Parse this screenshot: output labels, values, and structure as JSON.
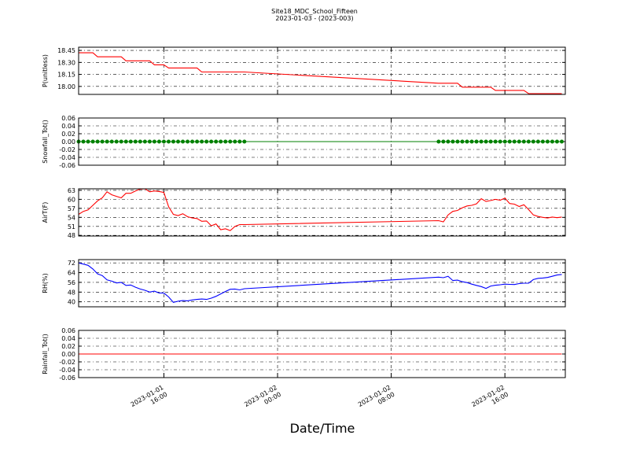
{
  "chart_data": {
    "type": "line",
    "title": "Site18_MDC_School_Fifteen",
    "subtitle": "2023-01-03 - (2023-003)",
    "xlabel": "Date/Time",
    "grid": true,
    "x": [
      "2023-01-01 10:00",
      "2023-01-01 10:20",
      "2023-01-01 10:40",
      "2023-01-01 11:00",
      "2023-01-01 11:20",
      "2023-01-01 11:40",
      "2023-01-01 12:00",
      "2023-01-01 12:20",
      "2023-01-01 12:40",
      "2023-01-01 13:00",
      "2023-01-01 13:20",
      "2023-01-01 13:40",
      "2023-01-01 14:00",
      "2023-01-01 14:20",
      "2023-01-01 14:40",
      "2023-01-01 15:00",
      "2023-01-01 15:20",
      "2023-01-01 15:40",
      "2023-01-01 16:00",
      "2023-01-01 16:20",
      "2023-01-01 16:40",
      "2023-01-01 17:00",
      "2023-01-01 17:20",
      "2023-01-01 17:40",
      "2023-01-01 18:00",
      "2023-01-01 18:20",
      "2023-01-01 18:40",
      "2023-01-01 19:00",
      "2023-01-01 19:20",
      "2023-01-01 19:40",
      "2023-01-01 20:00",
      "2023-01-01 20:20",
      "2023-01-01 20:40",
      "2023-01-01 21:00",
      "2023-01-01 21:20",
      "2023-01-01 21:40",
      "2023-01-02 11:20",
      "2023-01-02 11:40",
      "2023-01-02 12:00",
      "2023-01-02 12:20",
      "2023-01-02 12:40",
      "2023-01-02 13:00",
      "2023-01-02 13:20",
      "2023-01-02 13:40",
      "2023-01-02 14:00",
      "2023-01-02 14:20",
      "2023-01-02 14:40",
      "2023-01-02 15:00",
      "2023-01-02 15:20",
      "2023-01-02 15:40",
      "2023-01-02 16:00",
      "2023-01-02 16:20",
      "2023-01-02 16:40",
      "2023-01-02 17:00",
      "2023-01-02 17:20",
      "2023-01-02 17:40",
      "2023-01-02 18:00",
      "2023-01-02 18:20",
      "2023-01-02 18:40",
      "2023-01-02 19:00",
      "2023-01-02 19:20",
      "2023-01-02 19:40",
      "2023-01-02 20:00"
    ],
    "xlim": [
      "2023-01-01 10:00",
      "2023-01-02 20:15"
    ],
    "xticks": [
      "2023-01-01 16:00",
      "2023-01-02 00:00",
      "2023-01-02 08:00",
      "2023-01-02 16:00"
    ],
    "panels": [
      {
        "ylabel": "P(unitless)",
        "color": "#ff0000",
        "ylim": [
          17.9,
          18.49
        ],
        "yticks": [
          {
            "value": 18.0,
            "label": "18.00"
          },
          18.15,
          {
            "value": 18.3,
            "label": "18.30"
          },
          18.45
        ],
        "values": [
          18.42,
          18.42,
          18.42,
          18.42,
          18.37,
          18.37,
          18.37,
          18.37,
          18.37,
          18.37,
          18.32,
          18.32,
          18.32,
          18.32,
          18.32,
          18.32,
          18.27,
          18.27,
          18.27,
          18.23,
          18.23,
          18.23,
          18.23,
          18.23,
          18.23,
          18.23,
          18.18,
          18.18,
          18.18,
          18.18,
          18.18,
          18.18,
          18.18,
          18.18,
          18.18,
          18.18,
          18.04,
          18.04,
          18.04,
          18.04,
          18.04,
          17.99,
          17.99,
          17.99,
          17.99,
          17.99,
          17.99,
          17.99,
          17.95,
          17.95,
          17.95,
          17.95,
          17.95,
          17.95,
          17.95,
          17.91,
          17.91,
          17.91,
          17.91,
          17.91,
          17.91,
          17.91,
          17.91
        ]
      },
      {
        "ylabel": "Snowfall_Tot()",
        "color": "#008000",
        "marker": true,
        "ylim": [
          -0.06,
          0.06
        ],
        "yticks": [
          -0.06,
          -0.04,
          -0.02,
          {
            "value": 0,
            "label": "0.00"
          },
          0.02,
          0.04,
          0.06
        ],
        "values": [
          0,
          0,
          0,
          0,
          0,
          0,
          0,
          0,
          0,
          0,
          0,
          0,
          0,
          0,
          0,
          0,
          0,
          0,
          0,
          0,
          0,
          0,
          0,
          0,
          0,
          0,
          0,
          0,
          0,
          0,
          0,
          0,
          0,
          0,
          0,
          0,
          0,
          0,
          0,
          0,
          0,
          0,
          0,
          0,
          0,
          0,
          0,
          0,
          0,
          0,
          0,
          0,
          0,
          0,
          0,
          0,
          0,
          0,
          0,
          0,
          0,
          0,
          0
        ]
      },
      {
        "ylabel": "AirT(F)",
        "color": "#ff0000",
        "ylim": [
          47.8,
          63.5
        ],
        "yticks": [
          48,
          51,
          54,
          57,
          60,
          63
        ],
        "values": [
          55,
          56,
          56.5,
          58,
          59.5,
          60.5,
          62.5,
          61.5,
          61,
          60.5,
          62,
          62,
          62.8,
          63.4,
          63.5,
          62.5,
          62.8,
          62.6,
          62.3,
          57.5,
          55,
          54.6,
          55.2,
          54.2,
          53.8,
          53.6,
          52.7,
          52.8,
          51.2,
          51.8,
          49.9,
          50.2,
          49.6,
          51,
          51.6,
          51.6,
          52.9,
          52.5,
          54.8,
          56,
          56.3,
          57.2,
          57.8,
          58,
          58.5,
          60.2,
          59.3,
          59.6,
          60,
          59.7,
          60.4,
          58.6,
          58.4,
          57.6,
          58.2,
          56.6,
          54.8,
          54.3,
          54,
          53.8,
          54.1,
          53.9,
          54.1
        ]
      },
      {
        "ylabel": "RH(%)",
        "color": "#0000ff",
        "ylim": [
          35.9,
          74.7
        ],
        "yticks": [
          40,
          48,
          56,
          64,
          72
        ],
        "values": [
          72,
          71,
          70,
          67,
          63,
          61.5,
          58,
          57,
          55.5,
          56,
          53.5,
          53.8,
          52,
          50.5,
          49.5,
          48,
          48.8,
          47.2,
          47.3,
          44,
          39.5,
          40.5,
          41,
          40.8,
          41.5,
          42,
          42.3,
          42,
          43,
          44.5,
          46.5,
          48.5,
          50.3,
          50.5,
          49.8,
          50.8,
          60.3,
          59.8,
          61,
          57.5,
          57.8,
          56.5,
          55.8,
          54.5,
          53.5,
          52.5,
          51,
          53,
          53.6,
          54,
          54.5,
          54.3,
          54.2,
          55,
          55.3,
          55.3,
          58.3,
          59.3,
          59.6,
          60,
          61,
          62,
          62.5
        ]
      },
      {
        "ylabel": "Rainfall_Tot()",
        "color": "#ff0000",
        "ylim": [
          -0.06,
          0.06
        ],
        "yticks": [
          -0.06,
          -0.04,
          -0.02,
          {
            "value": 0,
            "label": "0.00"
          },
          0.02,
          0.04,
          0.06
        ],
        "values": [
          0,
          0,
          0,
          0,
          0,
          0,
          0,
          0,
          0,
          0,
          0,
          0,
          0,
          0,
          0,
          0,
          0,
          0,
          0,
          0,
          0,
          0,
          0,
          0,
          0,
          0,
          0,
          0,
          0,
          0,
          0,
          0,
          0,
          0,
          0,
          0,
          0,
          0,
          0,
          0,
          0,
          0,
          0,
          0,
          0,
          0,
          0,
          0,
          0,
          0,
          0,
          0,
          0,
          0,
          0,
          0,
          0,
          0,
          0,
          0,
          0,
          0,
          0
        ]
      }
    ]
  }
}
